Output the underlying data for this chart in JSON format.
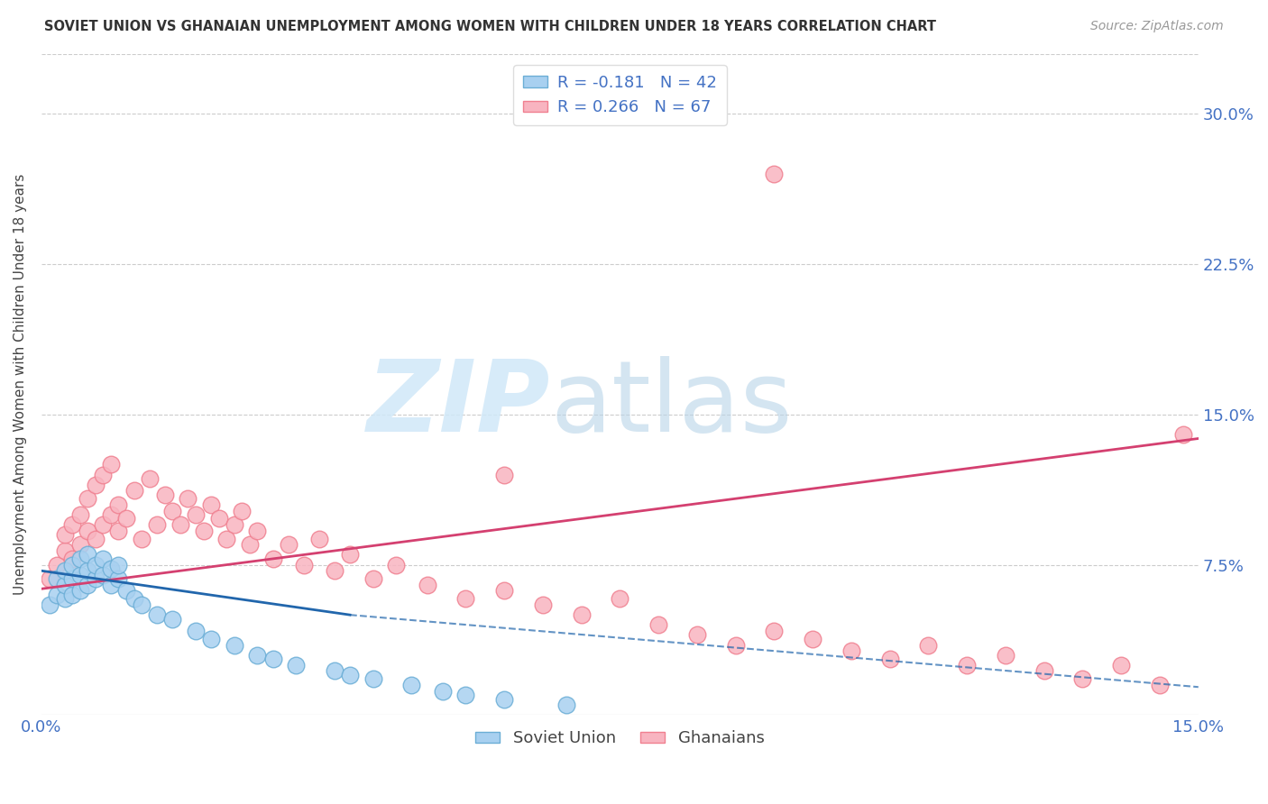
{
  "title": "SOVIET UNION VS GHANAIAN UNEMPLOYMENT AMONG WOMEN WITH CHILDREN UNDER 18 YEARS CORRELATION CHART",
  "source": "Source: ZipAtlas.com",
  "ylabel": "Unemployment Among Women with Children Under 18 years",
  "ytick_labels": [
    "30.0%",
    "22.5%",
    "15.0%",
    "7.5%"
  ],
  "ytick_values": [
    0.3,
    0.225,
    0.15,
    0.075
  ],
  "xlim": [
    0.0,
    0.15
  ],
  "ylim": [
    0.0,
    0.33
  ],
  "legend_r1": "R = -0.181   N = 42",
  "legend_r2": "R = 0.266   N = 67",
  "soviet_face_color": "#a8d0f0",
  "soviet_edge_color": "#6baed6",
  "ghanaian_face_color": "#f8b4c0",
  "ghanaian_edge_color": "#f08090",
  "trendline_soviet_color": "#2166ac",
  "trendline_ghanaian_color": "#d44070",
  "legend_label_soviet": "Soviet Union",
  "legend_label_ghanaian": "Ghanaians",
  "background_color": "#ffffff",
  "grid_color": "#cccccc",
  "soviet_x": [
    0.001,
    0.002,
    0.002,
    0.003,
    0.003,
    0.003,
    0.004,
    0.004,
    0.004,
    0.005,
    0.005,
    0.005,
    0.006,
    0.006,
    0.006,
    0.007,
    0.007,
    0.008,
    0.008,
    0.009,
    0.009,
    0.01,
    0.01,
    0.011,
    0.012,
    0.013,
    0.015,
    0.017,
    0.02,
    0.022,
    0.025,
    0.028,
    0.03,
    0.033,
    0.038,
    0.04,
    0.043,
    0.048,
    0.052,
    0.055,
    0.06,
    0.068
  ],
  "soviet_y": [
    0.055,
    0.06,
    0.068,
    0.058,
    0.065,
    0.072,
    0.06,
    0.068,
    0.075,
    0.062,
    0.07,
    0.078,
    0.065,
    0.072,
    0.08,
    0.068,
    0.075,
    0.07,
    0.078,
    0.065,
    0.073,
    0.068,
    0.075,
    0.062,
    0.058,
    0.055,
    0.05,
    0.048,
    0.042,
    0.038,
    0.035,
    0.03,
    0.028,
    0.025,
    0.022,
    0.02,
    0.018,
    0.015,
    0.012,
    0.01,
    0.008,
    0.005
  ],
  "ghanaian_x": [
    0.001,
    0.002,
    0.003,
    0.003,
    0.004,
    0.004,
    0.005,
    0.005,
    0.006,
    0.006,
    0.007,
    0.007,
    0.008,
    0.008,
    0.009,
    0.009,
    0.01,
    0.01,
    0.011,
    0.012,
    0.013,
    0.014,
    0.015,
    0.016,
    0.017,
    0.018,
    0.019,
    0.02,
    0.021,
    0.022,
    0.023,
    0.024,
    0.025,
    0.026,
    0.027,
    0.028,
    0.03,
    0.032,
    0.034,
    0.036,
    0.038,
    0.04,
    0.043,
    0.046,
    0.05,
    0.055,
    0.06,
    0.065,
    0.07,
    0.075,
    0.08,
    0.085,
    0.09,
    0.095,
    0.1,
    0.105,
    0.11,
    0.115,
    0.12,
    0.125,
    0.13,
    0.135,
    0.14,
    0.145,
    0.148,
    0.06,
    0.095
  ],
  "ghanaian_y": [
    0.068,
    0.075,
    0.082,
    0.09,
    0.078,
    0.095,
    0.085,
    0.1,
    0.092,
    0.108,
    0.088,
    0.115,
    0.095,
    0.12,
    0.1,
    0.125,
    0.092,
    0.105,
    0.098,
    0.112,
    0.088,
    0.118,
    0.095,
    0.11,
    0.102,
    0.095,
    0.108,
    0.1,
    0.092,
    0.105,
    0.098,
    0.088,
    0.095,
    0.102,
    0.085,
    0.092,
    0.078,
    0.085,
    0.075,
    0.088,
    0.072,
    0.08,
    0.068,
    0.075,
    0.065,
    0.058,
    0.062,
    0.055,
    0.05,
    0.058,
    0.045,
    0.04,
    0.035,
    0.042,
    0.038,
    0.032,
    0.028,
    0.035,
    0.025,
    0.03,
    0.022,
    0.018,
    0.025,
    0.015,
    0.14,
    0.12,
    0.27
  ]
}
